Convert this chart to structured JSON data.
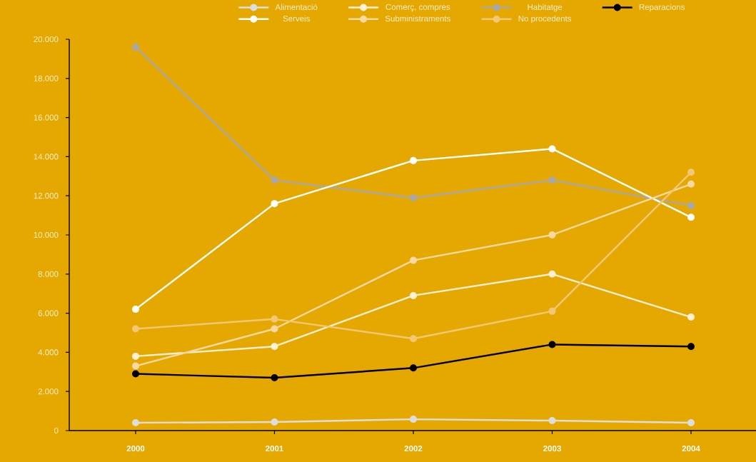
{
  "chart_data": {
    "type": "line",
    "categories": [
      "2000",
      "2001",
      "2002",
      "2003",
      "2004"
    ],
    "series": [
      {
        "name": "Alimentació",
        "color": "#dddddd",
        "values": [
          400,
          440,
          580,
          510,
          400
        ]
      },
      {
        "name": "Comerç, compres",
        "color": "#fff0d6",
        "values": [
          3800,
          4300,
          6900,
          8000,
          5800
        ]
      },
      {
        "name": "Habitatge",
        "color": "#a8a8a8",
        "values": [
          19600,
          12800,
          11900,
          12800,
          11500
        ]
      },
      {
        "name": "Reparacions",
        "color": "#000000",
        "values": [
          2900,
          2700,
          3200,
          4400,
          4300
        ]
      },
      {
        "name": "Serveis",
        "color": "#ffffff",
        "values": [
          6200,
          11600,
          13800,
          14400,
          10900
        ]
      },
      {
        "name": "Subministraments",
        "color": "#f8d9a4",
        "values": [
          3300,
          5200,
          8700,
          10000,
          12600
        ]
      },
      {
        "name": "No procedents",
        "color": "#f2c776",
        "values": [
          5200,
          5700,
          4700,
          6100,
          13200
        ]
      }
    ],
    "ylim": [
      0,
      20000
    ],
    "yticks": [
      0,
      {
        "value": 2000,
        "label": "2.000"
      },
      {
        "value": 4000,
        "label": "4.000"
      },
      {
        "value": 6000,
        "label": "6.000"
      },
      {
        "value": 8000,
        "label": "8.000"
      },
      {
        "value": 10000,
        "label": "10.000"
      },
      {
        "value": 12000,
        "label": "12.000"
      },
      {
        "value": 14000,
        "label": "14.000"
      },
      {
        "value": 16000,
        "label": "16.000"
      },
      {
        "value": 18000,
        "label": "18.000"
      },
      {
        "value": 20000,
        "label": "20.000"
      }
    ],
    "legend": "top",
    "marker": "circle",
    "line_style": "solid"
  }
}
